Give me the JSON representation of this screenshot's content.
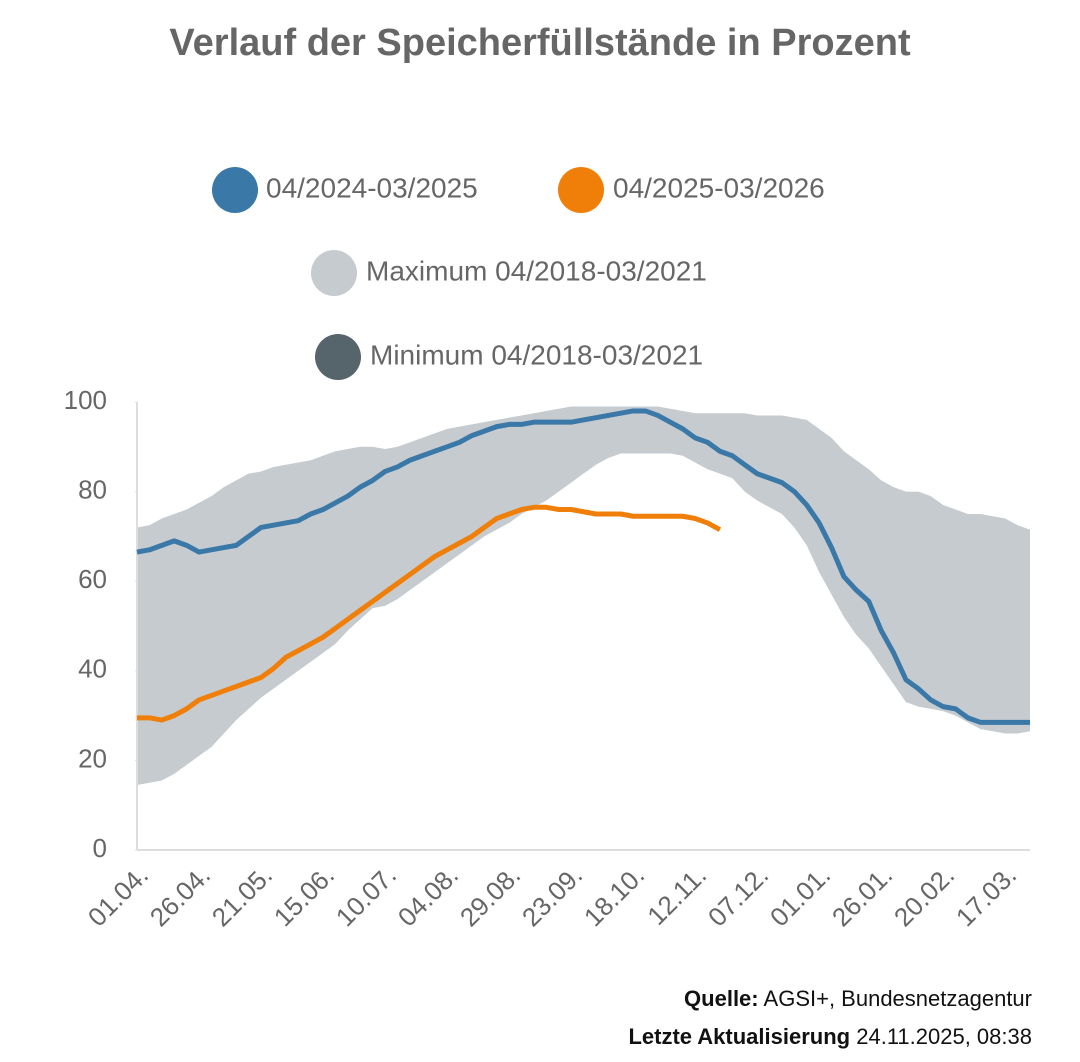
{
  "chart_data": {
    "type": "line",
    "title": "Verlauf der Speicherfüllstände in Prozent",
    "categories": [
      "01.04.",
      null,
      null,
      null,
      null,
      "26.04.",
      null,
      null,
      null,
      null,
      "21.05.",
      null,
      null,
      null,
      null,
      "15.06.",
      null,
      null,
      null,
      null,
      "10.07.",
      null,
      null,
      null,
      null,
      "04.08.",
      null,
      null,
      null,
      null,
      "29.08.",
      null,
      null,
      null,
      null,
      "23.09.",
      null,
      null,
      null,
      null,
      "18.10.",
      null,
      null,
      null,
      null,
      "12.11.",
      null,
      null,
      null,
      null,
      "07.12.",
      null,
      null,
      null,
      null,
      "01.01.",
      null,
      null,
      null,
      null,
      "26.01.",
      null,
      null,
      null,
      null,
      "20.02.",
      null,
      null,
      null,
      null,
      "17.03.",
      null,
      null
    ],
    "ylim": [
      0,
      100
    ],
    "yticks": [
      0,
      20,
      40,
      60,
      80,
      100
    ],
    "series": [
      {
        "name": "04/2024-03/2025",
        "color": "#3a78a8",
        "values": [
          66.5,
          67,
          68,
          69,
          68,
          66.5,
          67,
          67.5,
          68,
          70,
          72,
          72.5,
          73,
          73.5,
          75,
          76,
          77.5,
          79,
          81,
          82.5,
          84.5,
          85.5,
          87,
          88,
          89,
          90,
          91,
          92.5,
          93.5,
          94.5,
          95,
          95,
          95.5,
          95.5,
          95.5,
          95.5,
          96,
          96.5,
          97,
          97.5,
          98,
          98,
          97,
          95.5,
          94,
          92,
          91,
          89,
          88,
          86,
          84,
          83,
          82,
          80,
          77,
          73,
          67.5,
          61,
          58,
          55.5,
          49,
          44,
          38,
          36,
          33.5,
          32,
          31.5,
          29.5,
          28.5,
          28.5,
          28.5,
          28.5,
          28.5
        ]
      },
      {
        "name": "04/2025-03/2026",
        "color": "#f07f0a",
        "values": [
          29.5,
          29.5,
          29,
          30,
          31.5,
          33.5,
          34.5,
          35.5,
          36.5,
          37.5,
          38.5,
          40.5,
          43,
          44.5,
          46,
          47.5,
          49.5,
          51.5,
          53.5,
          55.5,
          57.5,
          59.5,
          61.5,
          63.5,
          65.5,
          67,
          68.5,
          70,
          72,
          74,
          75,
          76,
          76.5,
          76.5,
          76,
          76,
          75.5,
          75,
          75,
          75,
          74.5,
          74.5,
          74.5,
          74.5,
          74.5,
          74,
          73,
          71.5,
          null,
          null,
          null,
          null,
          null,
          null,
          null,
          null,
          null,
          null,
          null,
          null,
          null,
          null,
          null,
          null,
          null,
          null,
          null,
          null,
          null,
          null,
          null,
          null,
          null
        ]
      },
      {
        "name": "Maximum 04/2018-03/2021",
        "color": "#c6cbcf",
        "values": [
          72,
          72.5,
          74,
          75,
          76,
          77.5,
          79,
          81,
          82.5,
          84,
          84.5,
          85.5,
          86,
          86.5,
          87,
          88,
          89,
          89.5,
          90,
          90,
          89.5,
          90,
          91,
          92,
          93,
          94,
          94.5,
          95,
          95.5,
          96,
          96.5,
          97,
          97.5,
          98,
          98.5,
          99,
          99,
          99,
          99,
          99,
          99,
          99,
          99,
          98.5,
          98,
          97.5,
          97.5,
          97.5,
          97.5,
          97.5,
          97,
          97,
          97,
          96.5,
          96,
          94,
          92,
          89,
          87,
          85,
          82.5,
          81,
          80,
          80,
          79,
          77,
          76,
          75,
          75,
          74.5,
          74,
          72.5,
          71.5
        ]
      },
      {
        "name": "Minimum 04/2018-03/2021",
        "color": "#56646c",
        "values": [
          14.5,
          15,
          15.5,
          17,
          19,
          21,
          23,
          26,
          29,
          31.5,
          34,
          36,
          38,
          40,
          42,
          44,
          46,
          49,
          51.5,
          54,
          54.5,
          56,
          58,
          60,
          62,
          64,
          66,
          68,
          70,
          71.5,
          73,
          75,
          76.5,
          78,
          80,
          82,
          84,
          86,
          87.5,
          88.5,
          88.5,
          88.5,
          88.5,
          88.5,
          88,
          86.5,
          85,
          84,
          83,
          80,
          78,
          76.5,
          75,
          72,
          68,
          62,
          57,
          52,
          48,
          45,
          41,
          37,
          33,
          32,
          31.5,
          31,
          30,
          28.5,
          27,
          26.5,
          26,
          26,
          26.5
        ]
      }
    ],
    "source_label": "Quelle:",
    "source": "AGSI+, Bundesnetzagentur",
    "updated_label": "Letzte Aktualisierung",
    "updated": "24.11.2025, 08:38"
  }
}
